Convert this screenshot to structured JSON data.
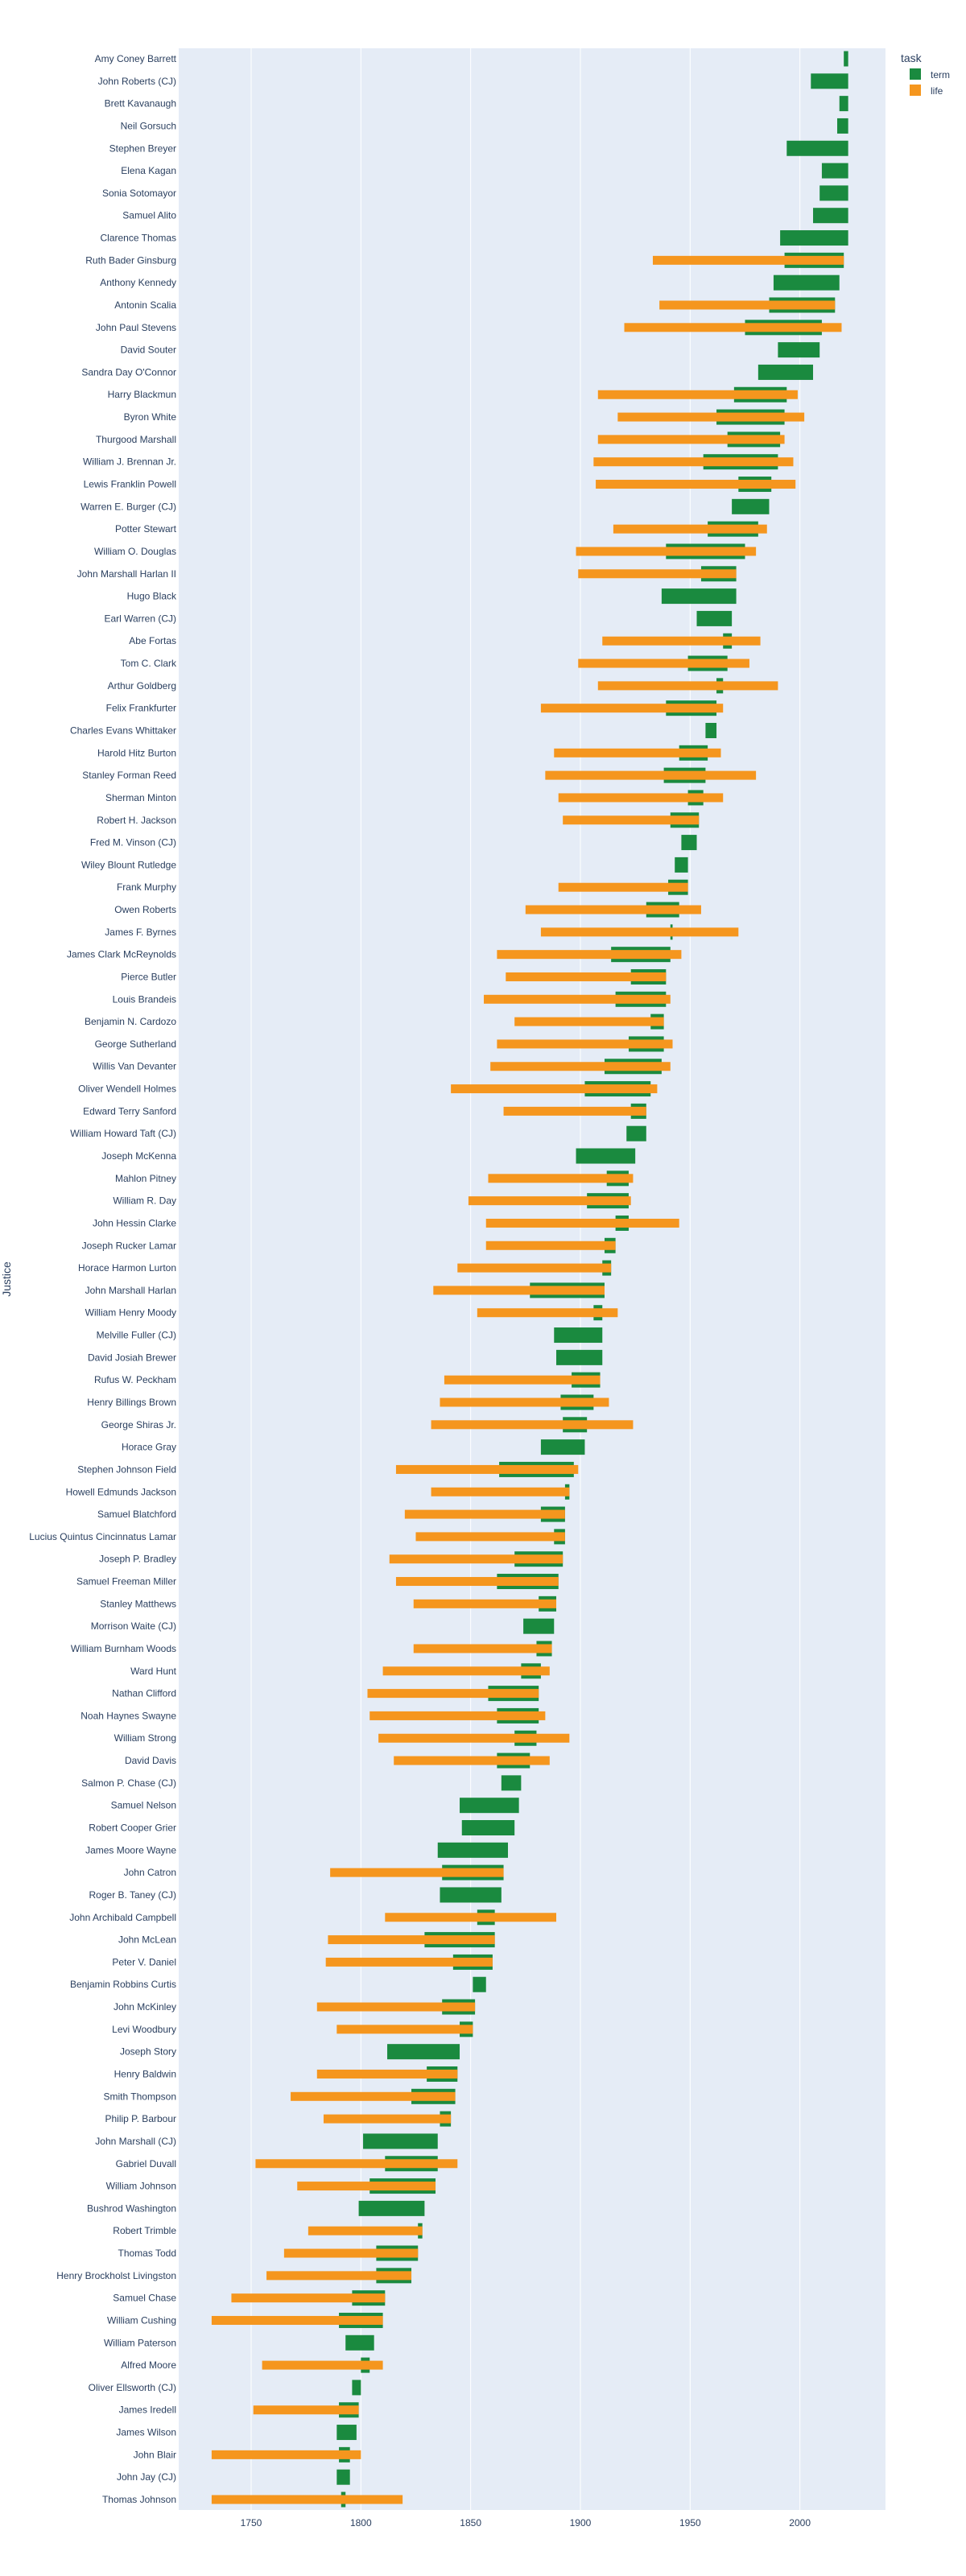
{
  "chart_data": {
    "type": "bar",
    "orientation": "horizontal",
    "ylabel": "Justice",
    "xlabel": "",
    "xlim": [
      1717,
      2039
    ],
    "xticks": [
      1750,
      1800,
      1850,
      1900,
      1950,
      2000
    ],
    "legend": {
      "title": "task",
      "placement": "top-right"
    },
    "colors": {
      "term": "#1a8a3f",
      "life": "#f5961e",
      "plot_bg": "#e5ecf6",
      "grid": "#ffffff",
      "text": "#2a3f5f"
    },
    "series": [
      {
        "name": "term",
        "color": "#1a8a3f"
      },
      {
        "name": "life",
        "color": "#f5961e"
      }
    ],
    "justices": [
      {
        "name": "Amy Coney Barrett",
        "term": [
          2020,
          2022
        ],
        "life": null
      },
      {
        "name": "John Roberts (CJ)",
        "term": [
          2005,
          2022
        ],
        "life": null
      },
      {
        "name": "Brett Kavanaugh",
        "term": [
          2018,
          2022
        ],
        "life": null
      },
      {
        "name": "Neil Gorsuch",
        "term": [
          2017,
          2022
        ],
        "life": null
      },
      {
        "name": "Stephen Breyer",
        "term": [
          1994,
          2022
        ],
        "life": null
      },
      {
        "name": "Elena Kagan",
        "term": [
          2010,
          2022
        ],
        "life": null
      },
      {
        "name": "Sonia Sotomayor",
        "term": [
          2009,
          2022
        ],
        "life": null
      },
      {
        "name": "Samuel Alito",
        "term": [
          2006,
          2022
        ],
        "life": null
      },
      {
        "name": "Clarence Thomas",
        "term": [
          1991,
          2022
        ],
        "life": null
      },
      {
        "name": "Ruth Bader Ginsburg",
        "term": [
          1993,
          2020
        ],
        "life": [
          1933,
          2020
        ]
      },
      {
        "name": "Anthony Kennedy",
        "term": [
          1988,
          2018
        ],
        "life": null
      },
      {
        "name": "Antonin Scalia",
        "term": [
          1986,
          2016
        ],
        "life": [
          1936,
          2016
        ]
      },
      {
        "name": "John Paul Stevens",
        "term": [
          1975,
          2010
        ],
        "life": [
          1920,
          2019
        ]
      },
      {
        "name": "David Souter",
        "term": [
          1990,
          2009
        ],
        "life": null
      },
      {
        "name": "Sandra Day O'Connor",
        "term": [
          1981,
          2006
        ],
        "life": null
      },
      {
        "name": "Harry Blackmun",
        "term": [
          1970,
          1994
        ],
        "life": [
          1908,
          1999
        ]
      },
      {
        "name": "Byron White",
        "term": [
          1962,
          1993
        ],
        "life": [
          1917,
          2002
        ]
      },
      {
        "name": "Thurgood Marshall",
        "term": [
          1967,
          1991
        ],
        "life": [
          1908,
          1993
        ]
      },
      {
        "name": "William J. Brennan Jr.",
        "term": [
          1956,
          1990
        ],
        "life": [
          1906,
          1997
        ]
      },
      {
        "name": "Lewis Franklin Powell",
        "term": [
          1972,
          1987
        ],
        "life": [
          1907,
          1998
        ]
      },
      {
        "name": "Warren E. Burger (CJ)",
        "term": [
          1969,
          1986
        ],
        "life": null
      },
      {
        "name": "Potter Stewart",
        "term": [
          1958,
          1981
        ],
        "life": [
          1915,
          1985
        ]
      },
      {
        "name": "William O. Douglas",
        "term": [
          1939,
          1975
        ],
        "life": [
          1898,
          1980
        ]
      },
      {
        "name": "John Marshall Harlan II",
        "term": [
          1955,
          1971
        ],
        "life": [
          1899,
          1971
        ]
      },
      {
        "name": "Hugo Black",
        "term": [
          1937,
          1971
        ],
        "life": null
      },
      {
        "name": "Earl Warren (CJ)",
        "term": [
          1953,
          1969
        ],
        "life": null
      },
      {
        "name": "Abe Fortas",
        "term": [
          1965,
          1969
        ],
        "life": [
          1910,
          1982
        ]
      },
      {
        "name": "Tom C. Clark",
        "term": [
          1949,
          1967
        ],
        "life": [
          1899,
          1977
        ]
      },
      {
        "name": "Arthur Goldberg",
        "term": [
          1962,
          1965
        ],
        "life": [
          1908,
          1990
        ]
      },
      {
        "name": "Felix Frankfurter",
        "term": [
          1939,
          1962
        ],
        "life": [
          1882,
          1965
        ]
      },
      {
        "name": "Charles Evans Whittaker",
        "term": [
          1957,
          1962
        ],
        "life": null
      },
      {
        "name": "Harold Hitz Burton",
        "term": [
          1945,
          1958
        ],
        "life": [
          1888,
          1964
        ]
      },
      {
        "name": "Stanley Forman Reed",
        "term": [
          1938,
          1957
        ],
        "life": [
          1884,
          1980
        ]
      },
      {
        "name": "Sherman Minton",
        "term": [
          1949,
          1956
        ],
        "life": [
          1890,
          1965
        ]
      },
      {
        "name": "Robert H. Jackson",
        "term": [
          1941,
          1954
        ],
        "life": [
          1892,
          1954
        ]
      },
      {
        "name": "Fred M. Vinson (CJ)",
        "term": [
          1946,
          1953
        ],
        "life": null
      },
      {
        "name": "Wiley Blount Rutledge",
        "term": [
          1943,
          1949
        ],
        "life": null
      },
      {
        "name": "Frank Murphy",
        "term": [
          1940,
          1949
        ],
        "life": [
          1890,
          1949
        ]
      },
      {
        "name": "Owen Roberts",
        "term": [
          1930,
          1945
        ],
        "life": [
          1875,
          1955
        ]
      },
      {
        "name": "James F. Byrnes",
        "term": [
          1941,
          1942
        ],
        "life": [
          1882,
          1972
        ]
      },
      {
        "name": "James Clark McReynolds",
        "term": [
          1914,
          1941
        ],
        "life": [
          1862,
          1946
        ]
      },
      {
        "name": "Pierce Butler",
        "term": [
          1923,
          1939
        ],
        "life": [
          1866,
          1939
        ]
      },
      {
        "name": "Louis Brandeis",
        "term": [
          1916,
          1939
        ],
        "life": [
          1856,
          1941
        ]
      },
      {
        "name": "Benjamin N. Cardozo",
        "term": [
          1932,
          1938
        ],
        "life": [
          1870,
          1938
        ]
      },
      {
        "name": "George Sutherland",
        "term": [
          1922,
          1938
        ],
        "life": [
          1862,
          1942
        ]
      },
      {
        "name": "Willis Van Devanter",
        "term": [
          1911,
          1937
        ],
        "life": [
          1859,
          1941
        ]
      },
      {
        "name": "Oliver Wendell Holmes",
        "term": [
          1902,
          1932
        ],
        "life": [
          1841,
          1935
        ]
      },
      {
        "name": "Edward Terry Sanford",
        "term": [
          1923,
          1930
        ],
        "life": [
          1865,
          1930
        ]
      },
      {
        "name": "William Howard Taft (CJ)",
        "term": [
          1921,
          1930
        ],
        "life": null
      },
      {
        "name": "Joseph McKenna",
        "term": [
          1898,
          1925
        ],
        "life": null
      },
      {
        "name": "Mahlon Pitney",
        "term": [
          1912,
          1922
        ],
        "life": [
          1858,
          1924
        ]
      },
      {
        "name": "William R. Day",
        "term": [
          1903,
          1922
        ],
        "life": [
          1849,
          1923
        ]
      },
      {
        "name": "John Hessin Clarke",
        "term": [
          1916,
          1922
        ],
        "life": [
          1857,
          1945
        ]
      },
      {
        "name": "Joseph Rucker Lamar",
        "term": [
          1911,
          1916
        ],
        "life": [
          1857,
          1916
        ]
      },
      {
        "name": "Horace Harmon Lurton",
        "term": [
          1910,
          1914
        ],
        "life": [
          1844,
          1914
        ]
      },
      {
        "name": "John Marshall Harlan",
        "term": [
          1877,
          1911
        ],
        "life": [
          1833,
          1911
        ]
      },
      {
        "name": "William Henry Moody",
        "term": [
          1906,
          1910
        ],
        "life": [
          1853,
          1917
        ]
      },
      {
        "name": "Melville Fuller (CJ)",
        "term": [
          1888,
          1910
        ],
        "life": null
      },
      {
        "name": "David Josiah Brewer",
        "term": [
          1889,
          1910
        ],
        "life": null
      },
      {
        "name": "Rufus W. Peckham",
        "term": [
          1896,
          1909
        ],
        "life": [
          1838,
          1909
        ]
      },
      {
        "name": "Henry Billings Brown",
        "term": [
          1891,
          1906
        ],
        "life": [
          1836,
          1913
        ]
      },
      {
        "name": "George Shiras Jr.",
        "term": [
          1892,
          1903
        ],
        "life": [
          1832,
          1924
        ]
      },
      {
        "name": "Horace Gray",
        "term": [
          1882,
          1902
        ],
        "life": null
      },
      {
        "name": "Stephen Johnson Field",
        "term": [
          1863,
          1897
        ],
        "life": [
          1816,
          1899
        ]
      },
      {
        "name": "Howell Edmunds Jackson",
        "term": [
          1893,
          1895
        ],
        "life": [
          1832,
          1895
        ]
      },
      {
        "name": "Samuel Blatchford",
        "term": [
          1882,
          1893
        ],
        "life": [
          1820,
          1893
        ]
      },
      {
        "name": "Lucius Quintus Cincinnatus Lamar",
        "term": [
          1888,
          1893
        ],
        "life": [
          1825,
          1893
        ]
      },
      {
        "name": "Joseph P. Bradley",
        "term": [
          1870,
          1892
        ],
        "life": [
          1813,
          1892
        ]
      },
      {
        "name": "Samuel Freeman Miller",
        "term": [
          1862,
          1890
        ],
        "life": [
          1816,
          1890
        ]
      },
      {
        "name": "Stanley Matthews",
        "term": [
          1881,
          1889
        ],
        "life": [
          1824,
          1889
        ]
      },
      {
        "name": "Morrison Waite (CJ)",
        "term": [
          1874,
          1888
        ],
        "life": null
      },
      {
        "name": "William Burnham Woods",
        "term": [
          1880,
          1887
        ],
        "life": [
          1824,
          1887
        ]
      },
      {
        "name": "Ward Hunt",
        "term": [
          1873,
          1882
        ],
        "life": [
          1810,
          1886
        ]
      },
      {
        "name": "Nathan Clifford",
        "term": [
          1858,
          1881
        ],
        "life": [
          1803,
          1881
        ]
      },
      {
        "name": "Noah Haynes Swayne",
        "term": [
          1862,
          1881
        ],
        "life": [
          1804,
          1884
        ]
      },
      {
        "name": "William Strong",
        "term": [
          1870,
          1880
        ],
        "life": [
          1808,
          1895
        ]
      },
      {
        "name": "David Davis",
        "term": [
          1862,
          1877
        ],
        "life": [
          1815,
          1886
        ]
      },
      {
        "name": "Salmon P. Chase (CJ)",
        "term": [
          1864,
          1873
        ],
        "life": null
      },
      {
        "name": "Samuel Nelson",
        "term": [
          1845,
          1872
        ],
        "life": null
      },
      {
        "name": "Robert Cooper Grier",
        "term": [
          1846,
          1870
        ],
        "life": null
      },
      {
        "name": "James Moore Wayne",
        "term": [
          1835,
          1867
        ],
        "life": null
      },
      {
        "name": "John Catron",
        "term": [
          1837,
          1865
        ],
        "life": [
          1786,
          1865
        ]
      },
      {
        "name": "Roger B. Taney (CJ)",
        "term": [
          1836,
          1864
        ],
        "life": null
      },
      {
        "name": "John Archibald Campbell",
        "term": [
          1853,
          1861
        ],
        "life": [
          1811,
          1889
        ]
      },
      {
        "name": "John McLean",
        "term": [
          1829,
          1861
        ],
        "life": [
          1785,
          1861
        ]
      },
      {
        "name": "Peter V. Daniel",
        "term": [
          1842,
          1860
        ],
        "life": [
          1784,
          1860
        ]
      },
      {
        "name": "Benjamin Robbins Curtis",
        "term": [
          1851,
          1857
        ],
        "life": null
      },
      {
        "name": "John McKinley",
        "term": [
          1837,
          1852
        ],
        "life": [
          1780,
          1852
        ]
      },
      {
        "name": "Levi Woodbury",
        "term": [
          1845,
          1851
        ],
        "life": [
          1789,
          1851
        ]
      },
      {
        "name": "Joseph Story",
        "term": [
          1812,
          1845
        ],
        "life": null
      },
      {
        "name": "Henry Baldwin",
        "term": [
          1830,
          1844
        ],
        "life": [
          1780,
          1844
        ]
      },
      {
        "name": "Smith Thompson",
        "term": [
          1823,
          1843
        ],
        "life": [
          1768,
          1843
        ]
      },
      {
        "name": "Philip P. Barbour",
        "term": [
          1836,
          1841
        ],
        "life": [
          1783,
          1841
        ]
      },
      {
        "name": "John Marshall (CJ)",
        "term": [
          1801,
          1835
        ],
        "life": null
      },
      {
        "name": "Gabriel Duvall",
        "term": [
          1811,
          1835
        ],
        "life": [
          1752,
          1844
        ]
      },
      {
        "name": "William Johnson",
        "term": [
          1804,
          1834
        ],
        "life": [
          1771,
          1834
        ]
      },
      {
        "name": "Bushrod Washington",
        "term": [
          1799,
          1829
        ],
        "life": null
      },
      {
        "name": "Robert Trimble",
        "term": [
          1826,
          1828
        ],
        "life": [
          1776,
          1828
        ]
      },
      {
        "name": "Thomas Todd",
        "term": [
          1807,
          1826
        ],
        "life": [
          1765,
          1826
        ]
      },
      {
        "name": "Henry Brockholst Livingston",
        "term": [
          1807,
          1823
        ],
        "life": [
          1757,
          1823
        ]
      },
      {
        "name": "Samuel Chase",
        "term": [
          1796,
          1811
        ],
        "life": [
          1741,
          1811
        ]
      },
      {
        "name": "William Cushing",
        "term": [
          1790,
          1810
        ],
        "life": [
          1732,
          1810
        ]
      },
      {
        "name": "William Paterson",
        "term": [
          1793,
          1806
        ],
        "life": null
      },
      {
        "name": "Alfred Moore",
        "term": [
          1800,
          1804
        ],
        "life": [
          1755,
          1810
        ]
      },
      {
        "name": "Oliver Ellsworth (CJ)",
        "term": [
          1796,
          1800
        ],
        "life": null
      },
      {
        "name": "James Iredell",
        "term": [
          1790,
          1799
        ],
        "life": [
          1751,
          1799
        ]
      },
      {
        "name": "James Wilson",
        "term": [
          1789,
          1798
        ],
        "life": null
      },
      {
        "name": "John Blair",
        "term": [
          1790,
          1795
        ],
        "life": [
          1732,
          1800
        ]
      },
      {
        "name": "John Jay (CJ)",
        "term": [
          1789,
          1795
        ],
        "life": null
      },
      {
        "name": "Thomas Johnson",
        "term": [
          1791,
          1793
        ],
        "life": [
          1732,
          1819
        ]
      }
    ]
  }
}
